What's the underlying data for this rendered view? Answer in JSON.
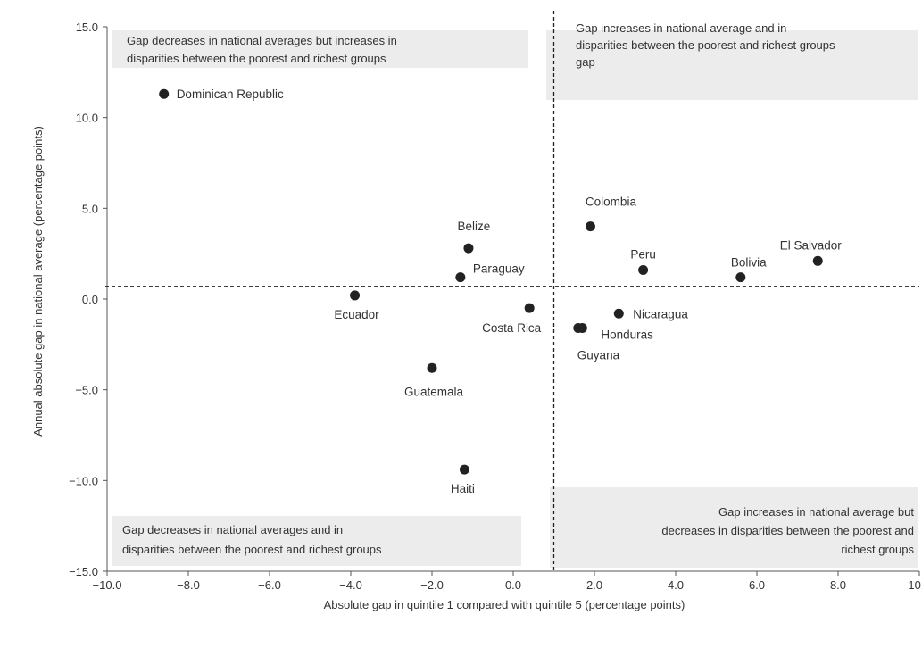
{
  "chart_data": {
    "type": "scatter",
    "xlabel": "Absolute gap in quintile 1 compared with quintile 5 (percentage points)",
    "ylabel": "Annual absolute gap in national average (percentage points)",
    "xlim": [
      -10,
      10
    ],
    "ylim": [
      -15,
      15
    ],
    "x_ticks": [
      "−10.0",
      "−8.0",
      "−6.0",
      "−4.0",
      "−2.0",
      "0.0",
      "2.0",
      "4.0",
      "6.0",
      "8.0",
      "10.0"
    ],
    "y_ticks": [
      "−15.0",
      "−10.0",
      "−5.0",
      "0.0",
      "5.0",
      "10.0",
      "15.0"
    ],
    "x_divider": 1.0,
    "y_divider": 0.7,
    "points": [
      {
        "label": "Dominican Republic",
        "x": -8.6,
        "y": 11.3
      },
      {
        "label": "Belize",
        "x": -1.1,
        "y": 2.8
      },
      {
        "label": "Paraguay",
        "x": -1.3,
        "y": 1.2
      },
      {
        "label": "Ecuador",
        "x": -3.9,
        "y": 0.2
      },
      {
        "label": "Costa Rica",
        "x": 0.4,
        "y": -0.5
      },
      {
        "label": "Guatemala",
        "x": -2.0,
        "y": -3.8
      },
      {
        "label": "Haiti",
        "x": -1.2,
        "y": -9.4
      },
      {
        "label": "Colombia",
        "x": 1.9,
        "y": 4.0
      },
      {
        "label": "Peru",
        "x": 3.2,
        "y": 1.6
      },
      {
        "label": "Bolivia",
        "x": 5.6,
        "y": 1.2
      },
      {
        "label": "El Salvador",
        "x": 7.5,
        "y": 2.1
      },
      {
        "label": "Nicaragua",
        "x": 2.6,
        "y": -0.8
      },
      {
        "label": "Honduras",
        "x": 1.7,
        "y": -1.6
      },
      {
        "label": "Guyana",
        "x": 1.6,
        "y": -1.6
      }
    ],
    "quadrant_notes": {
      "top_left": [
        "Gap decreases in national averages but increases in",
        "disparities between the poorest and richest groups"
      ],
      "top_right": [
        "Gap increases in national average and in",
        "disparities between the poorest and richest groups",
        "gap"
      ],
      "bottom_left": [
        "Gap decreases in national averages and in",
        "disparities between the poorest and richest groups"
      ],
      "bottom_right": [
        "Gap increases in national average but",
        "decreases in disparities between the poorest and",
        "richest groups"
      ]
    },
    "grid": false
  }
}
